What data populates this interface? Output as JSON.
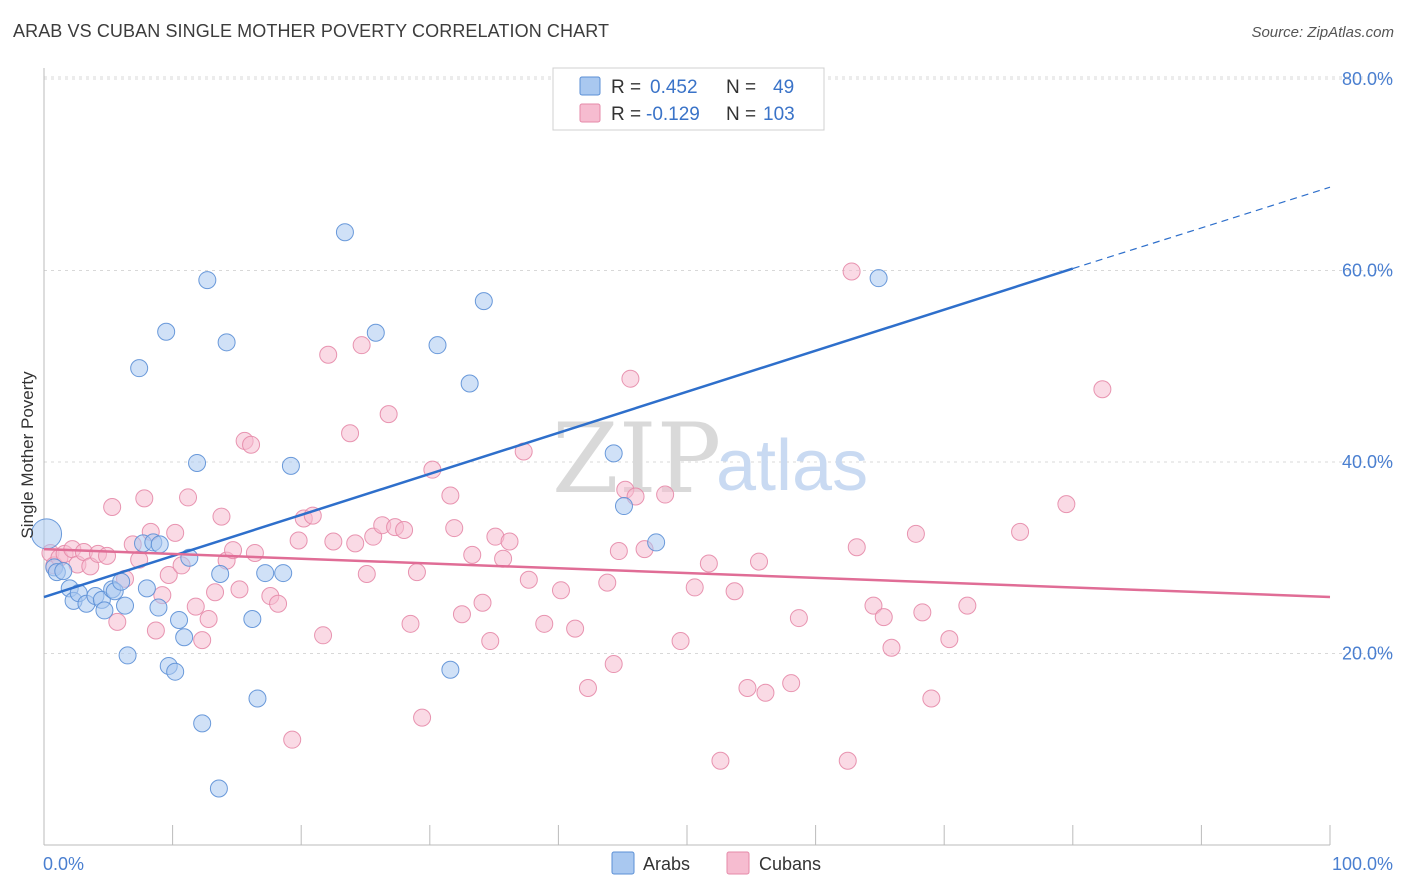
{
  "title": "ARAB VS CUBAN SINGLE MOTHER POVERTY CORRELATION CHART",
  "source": "Source: ZipAtlas.com",
  "watermark": {
    "zip": "ZIP",
    "atlas": "atlas"
  },
  "colors": {
    "arabs_fill": "#a9c8f0",
    "arabs_stroke": "#5b8fd6",
    "arabs_line": "#2e6fcb",
    "cubans_fill": "#f6bcd0",
    "cubans_stroke": "#e58aa9",
    "cubans_line": "#e06d96",
    "axis_label": "#4a7fd0",
    "grid": "#d8d8d8"
  },
  "legend": {
    "rows": [
      {
        "r_label": "R =",
        "r_value": "0.452",
        "n_label": "N =",
        "n_value": "49"
      },
      {
        "r_label": "R =",
        "r_value": "-0.129",
        "n_label": "N =",
        "n_value": "103"
      }
    ]
  },
  "bottom_legend": [
    "Arabs",
    "Cubans"
  ],
  "chart_data": {
    "type": "scatter",
    "title": "ARAB VS CUBAN SINGLE MOTHER POVERTY CORRELATION CHART",
    "xlabel": "",
    "ylabel": "Single Mother Poverty",
    "xlim": [
      0,
      100
    ],
    "ylim": [
      0,
      82
    ],
    "x_tick_labels": [
      "0.0%",
      "100.0%"
    ],
    "y_ticks": [
      20,
      40,
      60,
      80
    ],
    "y_tick_labels": [
      "20.0%",
      "40.0%",
      "60.0%",
      "80.0%"
    ],
    "grid": true,
    "legend_position": "top-center",
    "series": [
      {
        "name": "Arabs",
        "r": 0.452,
        "n": 49,
        "trend": {
          "x": [
            0,
            80
          ],
          "y": [
            25.9,
            60.2
          ],
          "dashed_extension_to": [
            100,
            68.7
          ]
        },
        "points": [
          [
            0.2,
            32.5
          ],
          [
            0.8,
            29.0
          ],
          [
            1.0,
            28.5
          ],
          [
            1.5,
            28.6
          ],
          [
            2.0,
            26.8
          ],
          [
            2.3,
            25.5
          ],
          [
            2.7,
            26.3
          ],
          [
            3.3,
            25.2
          ],
          [
            4.0,
            26.0
          ],
          [
            4.5,
            25.6
          ],
          [
            4.7,
            24.5
          ],
          [
            5.3,
            26.7
          ],
          [
            5.5,
            26.5
          ],
          [
            6.0,
            27.5
          ],
          [
            6.3,
            25.0
          ],
          [
            6.5,
            19.8
          ],
          [
            7.4,
            49.8
          ],
          [
            7.7,
            31.5
          ],
          [
            8.0,
            26.8
          ],
          [
            8.5,
            31.6
          ],
          [
            8.9,
            24.8
          ],
          [
            9.5,
            53.6
          ],
          [
            9.7,
            18.7
          ],
          [
            10.2,
            18.1
          ],
          [
            10.5,
            23.5
          ],
          [
            10.9,
            21.7
          ],
          [
            11.3,
            30.0
          ],
          [
            11.9,
            39.9
          ],
          [
            12.3,
            12.7
          ],
          [
            12.7,
            59.0
          ],
          [
            13.6,
            5.9
          ],
          [
            13.7,
            28.3
          ],
          [
            14.2,
            52.5
          ],
          [
            16.2,
            23.6
          ],
          [
            16.6,
            15.3
          ],
          [
            17.2,
            28.4
          ],
          [
            18.6,
            28.4
          ],
          [
            19.2,
            39.6
          ],
          [
            23.4,
            64.0
          ],
          [
            25.8,
            53.5
          ],
          [
            30.6,
            52.2
          ],
          [
            31.6,
            18.3
          ],
          [
            33.1,
            48.2
          ],
          [
            34.2,
            56.8
          ],
          [
            44.3,
            40.9
          ],
          [
            45.1,
            35.4
          ],
          [
            47.6,
            31.6
          ],
          [
            64.9,
            59.2
          ],
          [
            9.0,
            31.4
          ]
        ]
      },
      {
        "name": "Cubans",
        "r": -0.129,
        "n": 103,
        "trend": {
          "x": [
            0,
            100
          ],
          "y": [
            30.9,
            25.9
          ]
        },
        "points": [
          [
            0.5,
            30.5
          ],
          [
            0.8,
            29.2
          ],
          [
            1.2,
            30.0
          ],
          [
            1.6,
            30.4
          ],
          [
            2.2,
            30.9
          ],
          [
            2.6,
            29.3
          ],
          [
            3.1,
            30.6
          ],
          [
            3.6,
            29.1
          ],
          [
            4.2,
            30.4
          ],
          [
            4.9,
            30.2
          ],
          [
            5.3,
            35.3
          ],
          [
            5.7,
            23.3
          ],
          [
            6.3,
            27.8
          ],
          [
            6.9,
            31.4
          ],
          [
            7.4,
            29.8
          ],
          [
            7.8,
            36.2
          ],
          [
            8.3,
            32.7
          ],
          [
            8.7,
            22.4
          ],
          [
            9.2,
            26.1
          ],
          [
            9.7,
            28.2
          ],
          [
            10.2,
            32.6
          ],
          [
            10.7,
            29.2
          ],
          [
            11.2,
            36.3
          ],
          [
            11.8,
            24.9
          ],
          [
            12.3,
            21.4
          ],
          [
            12.8,
            23.6
          ],
          [
            13.3,
            26.4
          ],
          [
            13.8,
            34.3
          ],
          [
            14.2,
            29.7
          ],
          [
            14.7,
            30.8
          ],
          [
            15.2,
            26.7
          ],
          [
            15.6,
            42.2
          ],
          [
            16.1,
            41.8
          ],
          [
            16.4,
            30.5
          ],
          [
            17.6,
            26.0
          ],
          [
            18.2,
            25.2
          ],
          [
            19.3,
            11.0
          ],
          [
            19.8,
            31.8
          ],
          [
            20.2,
            34.1
          ],
          [
            20.9,
            34.4
          ],
          [
            21.7,
            21.9
          ],
          [
            22.1,
            51.2
          ],
          [
            22.5,
            31.7
          ],
          [
            23.8,
            43.0
          ],
          [
            24.2,
            31.5
          ],
          [
            24.7,
            52.2
          ],
          [
            25.1,
            28.3
          ],
          [
            25.6,
            32.2
          ],
          [
            26.3,
            33.4
          ],
          [
            26.8,
            45.0
          ],
          [
            27.3,
            33.2
          ],
          [
            28.0,
            32.9
          ],
          [
            28.5,
            23.1
          ],
          [
            29.0,
            28.5
          ],
          [
            29.4,
            13.3
          ],
          [
            30.2,
            39.2
          ],
          [
            31.6,
            36.5
          ],
          [
            31.9,
            33.1
          ],
          [
            32.5,
            24.1
          ],
          [
            33.3,
            30.3
          ],
          [
            34.1,
            25.3
          ],
          [
            34.7,
            21.3
          ],
          [
            35.1,
            32.2
          ],
          [
            35.7,
            29.9
          ],
          [
            36.2,
            31.7
          ],
          [
            37.3,
            41.1
          ],
          [
            37.7,
            27.7
          ],
          [
            38.9,
            23.1
          ],
          [
            40.2,
            26.6
          ],
          [
            41.3,
            22.6
          ],
          [
            42.3,
            16.4
          ],
          [
            43.8,
            27.4
          ],
          [
            44.3,
            18.9
          ],
          [
            44.7,
            30.7
          ],
          [
            45.2,
            37.1
          ],
          [
            45.6,
            48.7
          ],
          [
            46.0,
            36.4
          ],
          [
            46.7,
            30.9
          ],
          [
            48.3,
            36.6
          ],
          [
            49.5,
            21.3
          ],
          [
            50.6,
            26.9
          ],
          [
            51.7,
            29.4
          ],
          [
            52.6,
            8.8
          ],
          [
            53.7,
            26.5
          ],
          [
            54.7,
            16.4
          ],
          [
            55.6,
            29.6
          ],
          [
            56.1,
            15.9
          ],
          [
            58.1,
            16.9
          ],
          [
            58.7,
            23.7
          ],
          [
            62.5,
            8.8
          ],
          [
            62.8,
            59.9
          ],
          [
            63.2,
            31.1
          ],
          [
            64.5,
            25.0
          ],
          [
            65.3,
            23.8
          ],
          [
            65.9,
            20.6
          ],
          [
            67.8,
            32.5
          ],
          [
            68.3,
            24.3
          ],
          [
            69.0,
            15.3
          ],
          [
            70.4,
            21.5
          ],
          [
            71.8,
            25.0
          ],
          [
            75.9,
            32.7
          ],
          [
            79.5,
            35.6
          ],
          [
            82.3,
            47.6
          ]
        ]
      }
    ]
  }
}
